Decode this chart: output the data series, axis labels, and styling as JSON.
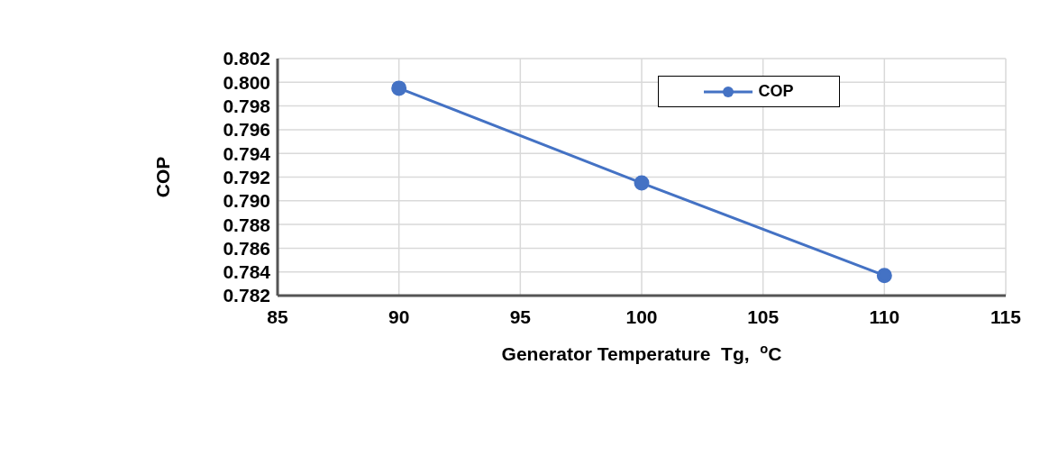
{
  "chart_data": {
    "type": "line",
    "xlabel": "Generator Temperature  Tg,  $^{o}$C",
    "ylabel": "COP",
    "x": [
      90,
      100,
      110
    ],
    "series": [
      {
        "name": "COP",
        "color": "#4472c4",
        "values": [
          0.7995,
          0.7915,
          0.7837
        ]
      }
    ],
    "xlim": [
      85,
      115
    ],
    "xticks": [
      85,
      90,
      95,
      100,
      105,
      110,
      115
    ],
    "ylim": [
      0.782,
      0.802
    ],
    "yticks": [
      {
        "value": 0.782,
        "label": "0.782"
      },
      {
        "value": 0.784,
        "label": "0.784"
      },
      {
        "value": 0.786,
        "label": "0.786"
      },
      {
        "value": 0.788,
        "label": "0.788"
      },
      {
        "value": 0.79,
        "label": "0.790"
      },
      {
        "value": 0.792,
        "label": "0.792"
      },
      {
        "value": 0.794,
        "label": "0.794"
      },
      {
        "value": 0.796,
        "label": "0.796"
      },
      {
        "value": 0.798,
        "label": "0.798"
      },
      {
        "value": 0.8,
        "label": "0.800"
      },
      {
        "value": 0.802,
        "label": "0.802"
      }
    ],
    "grid": true,
    "legend": "top right",
    "marker": "circle",
    "line_style": "solid"
  }
}
